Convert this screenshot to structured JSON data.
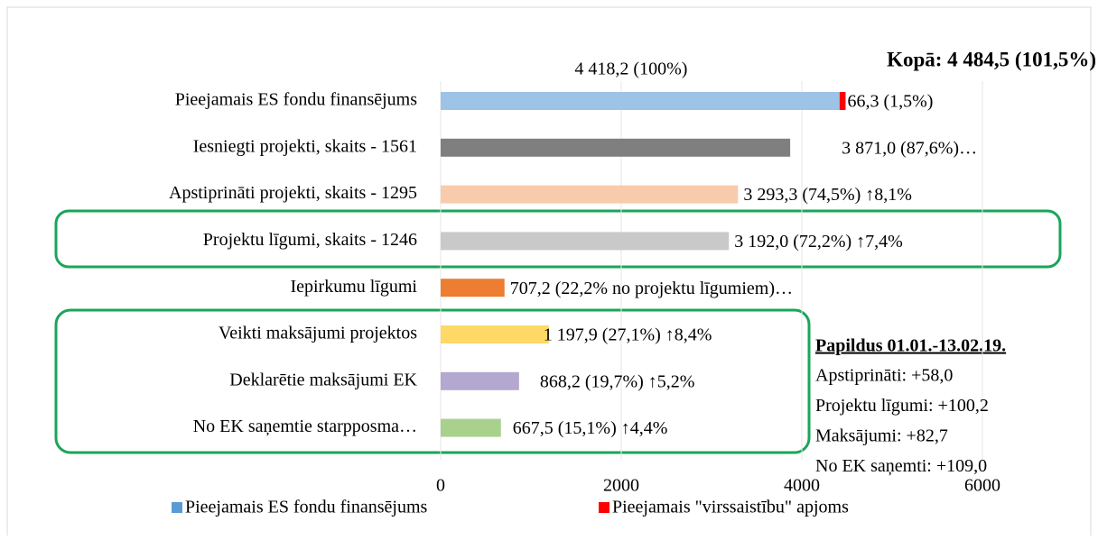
{
  "chart_data": {
    "type": "bar",
    "orientation": "horizontal",
    "title": "Kopā: 4 484,5 (101,5%)",
    "categories": [
      "Pieejamais ES fondu finansējums",
      "Iesniegti projekti, skaits - 1561",
      "Apstiprināti projekti, skaits - 1295",
      "Projektu līgumi, skaits -  1246",
      "Iepirkumu līgumi",
      "Veikti maksājumi projektos",
      "Deklarētie maksājumi EK",
      "No EK saņemtie starpposma…"
    ],
    "series": [
      {
        "name": "Pieejamais ES fondu finansējums",
        "color": "#5b9bd5",
        "colors": [
          "#9dc3e6",
          "#7f7f7f",
          "#f8cbad",
          "#c9c9c9",
          "#ed7d31",
          "#ffd966",
          "#b4a7d0",
          "#a9d18e"
        ],
        "values": [
          4418.2,
          3871.0,
          3293.3,
          3192.0,
          707.2,
          1197.9,
          868.2,
          667.5
        ],
        "value_labels": [
          "4 418,2 (100%)",
          "3 871,0 (87,6%)…",
          "3 293,3 (74,5%) ↑8,1%",
          "3 192,0 (72,2%) ↑7,4%",
          "707,2 (22,2% no projektu līgumiem)…",
          "1 197,9 (27,1%) ↑8,4%",
          "868,2 (19,7%) ↑5,2%",
          "667,5 (15,1%) ↑4,4%"
        ]
      },
      {
        "name": "Pieejamais \"virssaistību\" apjoms",
        "color": "#ff0000",
        "values": [
          66.3,
          null,
          null,
          null,
          null,
          null,
          null,
          null
        ],
        "value_labels": [
          "66,3 (1,5%)",
          null,
          null,
          null,
          null,
          null,
          null,
          null
        ]
      }
    ],
    "xlim": [
      0,
      6000
    ],
    "xticks": [
      0,
      2000,
      4000,
      6000
    ],
    "grid": true,
    "legend": "bottom",
    "annotation": {
      "title": "Papildus 01.01.-13.02.19.",
      "lines": [
        "Apstiprināti: +58,0",
        "Projektu līgumi: +100,2",
        "Maksājumi: +82,7",
        "No EK saņemti: +109,0"
      ]
    }
  }
}
